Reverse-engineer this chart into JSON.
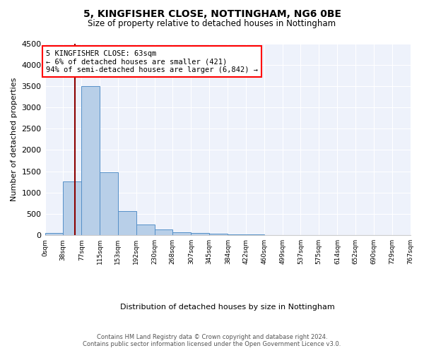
{
  "title1": "5, KINGFISHER CLOSE, NOTTINGHAM, NG6 0BE",
  "title2": "Size of property relative to detached houses in Nottingham",
  "xlabel": "Distribution of detached houses by size in Nottingham",
  "ylabel": "Number of detached properties",
  "bin_edges": [
    0,
    38,
    77,
    115,
    153,
    192,
    230,
    268,
    307,
    345,
    384,
    422,
    460,
    499,
    537,
    575,
    614,
    652,
    690,
    729,
    767
  ],
  "bar_heights": [
    50,
    1270,
    3500,
    1470,
    570,
    250,
    130,
    75,
    50,
    30,
    20,
    15,
    10,
    8,
    5,
    3,
    2,
    1,
    1,
    1
  ],
  "bar_color": "#b8cfe8",
  "bar_edge_color": "#5590c8",
  "vline_color": "#8b0000",
  "vline_x": 63,
  "annotation_text": "5 KINGFISHER CLOSE: 63sqm\n← 6% of detached houses are smaller (421)\n94% of semi-detached houses are larger (6,842) →",
  "ylim": [
    0,
    4500
  ],
  "yticks": [
    0,
    500,
    1000,
    1500,
    2000,
    2500,
    3000,
    3500,
    4000,
    4500
  ],
  "fig_bg_color": "#ffffff",
  "plot_bg_color": "#eef2fb",
  "grid_color": "#ffffff",
  "footer": "Contains HM Land Registry data © Crown copyright and database right 2024.\nContains public sector information licensed under the Open Government Licence v3.0."
}
